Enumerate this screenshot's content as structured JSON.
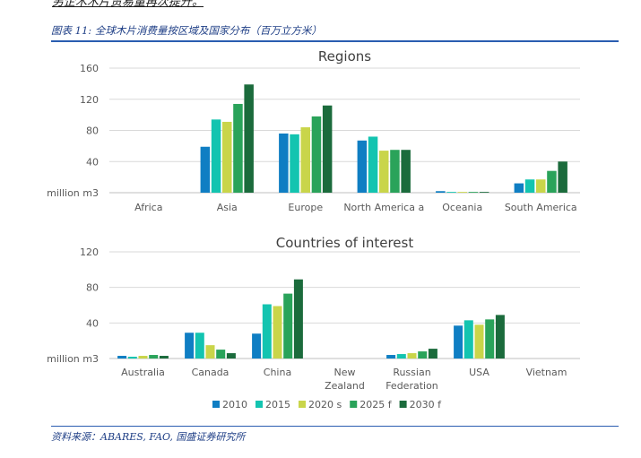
{
  "header": {
    "cut_text": "另企木木片贸易量再次提升。",
    "figure_title": "图表 11:  全球木片消费量按区域及国家分布（百万立方米）"
  },
  "footer": {
    "source": "资料来源：ABARES, FAO, 国盛证券研究所"
  },
  "colors": {
    "2010": "#0f7ec3",
    "2015": "#13c4b0",
    "2020s": "#c9d54a",
    "2025f": "#2aa35a",
    "2030f": "#1b6b3c",
    "rule": "#2a5db0"
  },
  "chart_data": [
    {
      "type": "bar",
      "title": "Regions",
      "ylabel": "million m3",
      "ylim": [
        0,
        160
      ],
      "yticks": [
        40,
        80,
        120,
        160
      ],
      "grid": true,
      "categories": [
        "Africa",
        "Asia",
        "Europe",
        "North America a",
        "Oceania",
        "South America"
      ],
      "series": [
        {
          "name": "2010",
          "values": [
            0,
            59,
            76,
            67,
            2,
            12
          ]
        },
        {
          "name": "2015",
          "values": [
            0,
            94,
            75,
            72,
            1,
            17
          ]
        },
        {
          "name": "2020 s",
          "values": [
            0,
            91,
            84,
            54,
            1,
            17
          ]
        },
        {
          "name": "2025 f",
          "values": [
            0,
            114,
            98,
            55,
            1,
            28
          ]
        },
        {
          "name": "2030 f",
          "values": [
            0,
            139,
            112,
            55,
            1,
            40
          ]
        }
      ]
    },
    {
      "type": "bar",
      "title": "Countries of interest",
      "ylabel": "million m3",
      "ylim": [
        0,
        120
      ],
      "yticks": [
        40,
        80,
        120
      ],
      "grid": true,
      "categories": [
        "Australia",
        "Canada",
        "China",
        "New\nZealand",
        "Russian\nFederation",
        "USA",
        "Vietnam"
      ],
      "series": [
        {
          "name": "2010",
          "values": [
            3,
            29,
            28,
            0,
            4,
            37,
            0
          ]
        },
        {
          "name": "2015",
          "values": [
            2,
            29,
            61,
            0,
            5,
            43,
            0
          ]
        },
        {
          "name": "2020 s",
          "values": [
            3,
            15,
            59,
            0,
            6,
            38,
            0
          ]
        },
        {
          "name": "2025 f",
          "values": [
            4,
            10,
            73,
            0,
            8,
            44,
            0
          ]
        },
        {
          "name": "2030 f",
          "values": [
            3,
            6,
            89,
            0,
            11,
            49,
            0
          ]
        }
      ],
      "legend": "bottom"
    }
  ]
}
